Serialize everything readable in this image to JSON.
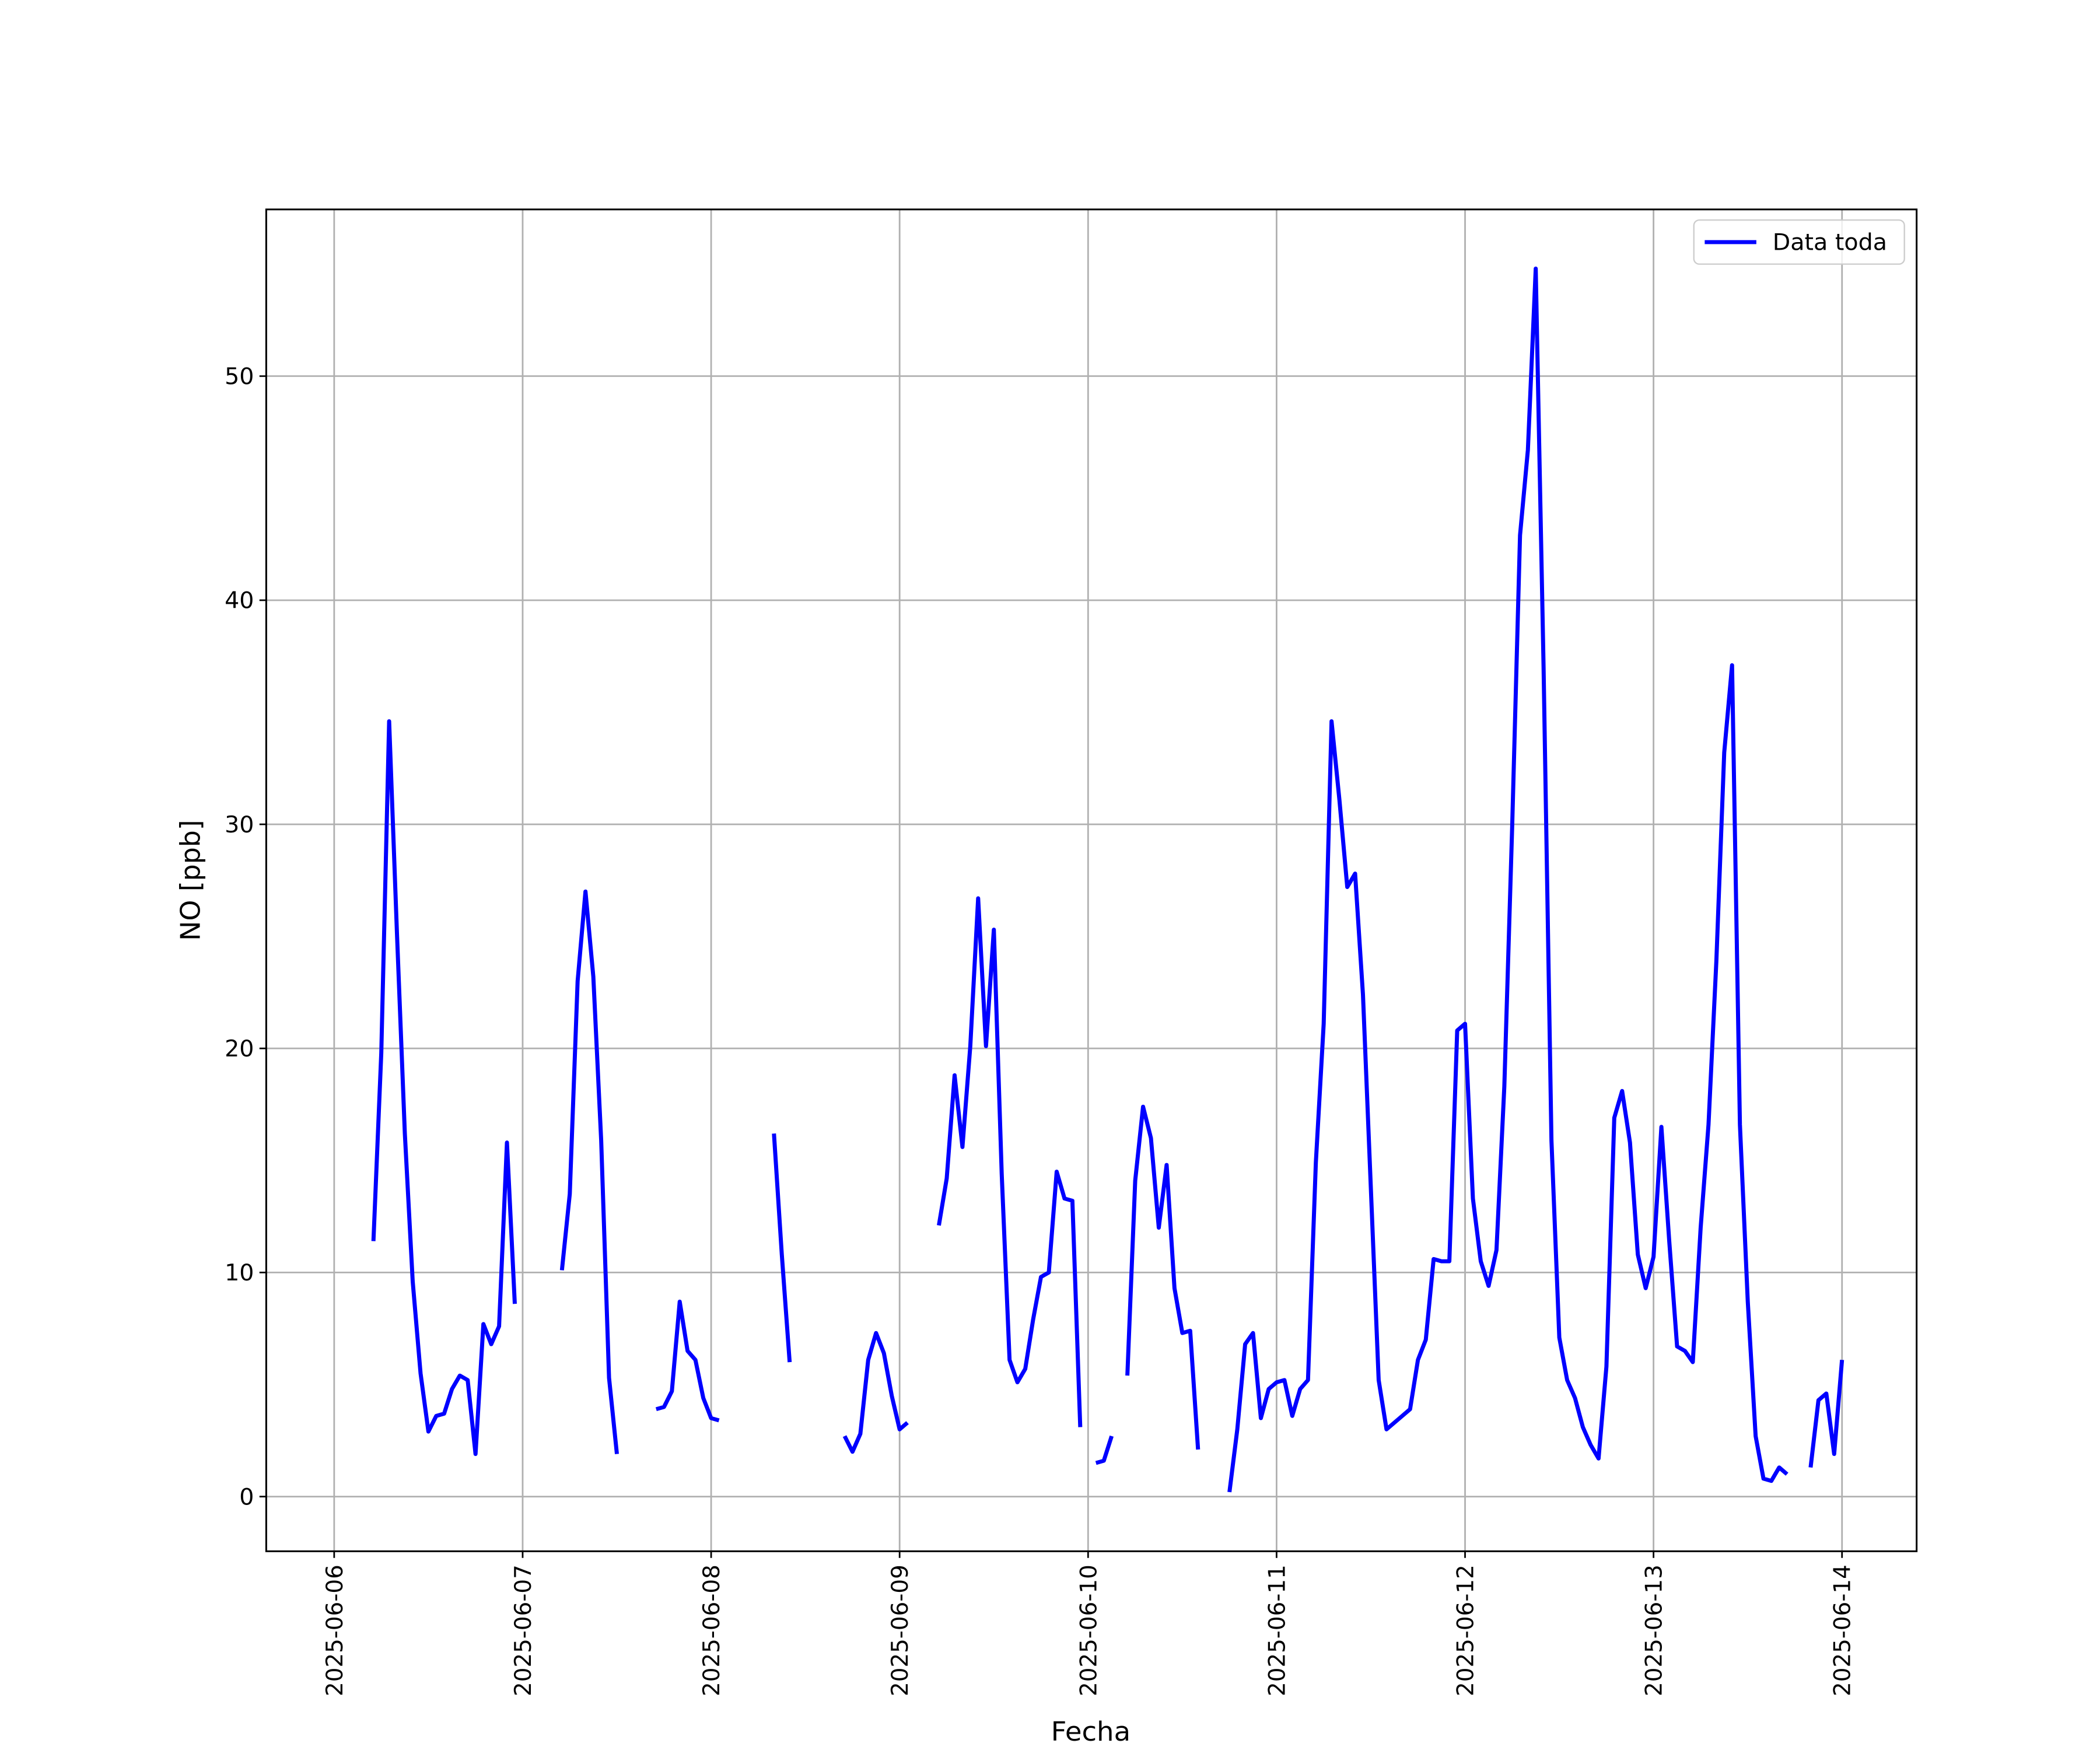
{
  "chart_data": {
    "type": "line",
    "xlabel": "Fecha",
    "ylabel": "NO [ppb]",
    "x": [
      "2025-06-06 05:00",
      "2025-06-06 06:00",
      "2025-06-06 07:00",
      "2025-06-06 08:00",
      "2025-06-06 09:00",
      "2025-06-06 10:00",
      "2025-06-06 11:00",
      "2025-06-06 12:00",
      "2025-06-06 13:00",
      "2025-06-06 14:00",
      "2025-06-06 15:00",
      "2025-06-06 16:00",
      "2025-06-06 17:00",
      "2025-06-06 18:00",
      "2025-06-06 19:00",
      "2025-06-06 20:00",
      "2025-06-06 21:00",
      "2025-06-06 22:00",
      "2025-06-06 23:00",
      "2025-06-07 00:00",
      "2025-06-07 01:00",
      "2025-06-07 02:00",
      "2025-06-07 03:00",
      "2025-06-07 04:00",
      "2025-06-07 05:00",
      "2025-06-07 06:00",
      "2025-06-07 07:00",
      "2025-06-07 08:00",
      "2025-06-07 09:00",
      "2025-06-07 10:00",
      "2025-06-07 11:00",
      "2025-06-07 12:00",
      "2025-06-07 13:00",
      "2025-06-07 14:00",
      "2025-06-07 15:00",
      "2025-06-07 16:00",
      "2025-06-07 17:00",
      "2025-06-07 18:00",
      "2025-06-07 19:00",
      "2025-06-07 20:00",
      "2025-06-07 21:00",
      "2025-06-07 22:00",
      "2025-06-07 23:00",
      "2025-06-08 00:00",
      "2025-06-08 01:00",
      "2025-06-08 02:00",
      "2025-06-08 03:00",
      "2025-06-08 04:00",
      "2025-06-08 05:00",
      "2025-06-08 06:00",
      "2025-06-08 07:00",
      "2025-06-08 08:00",
      "2025-06-08 09:00",
      "2025-06-08 10:00",
      "2025-06-08 11:00",
      "2025-06-08 12:00",
      "2025-06-08 13:00",
      "2025-06-08 14:00",
      "2025-06-08 15:00",
      "2025-06-08 16:00",
      "2025-06-08 17:00",
      "2025-06-08 18:00",
      "2025-06-08 19:00",
      "2025-06-08 20:00",
      "2025-06-08 21:00",
      "2025-06-08 22:00",
      "2025-06-08 23:00",
      "2025-06-09 00:00",
      "2025-06-09 01:00",
      "2025-06-09 02:00",
      "2025-06-09 03:00",
      "2025-06-09 04:00",
      "2025-06-09 05:00",
      "2025-06-09 06:00",
      "2025-06-09 07:00",
      "2025-06-09 08:00",
      "2025-06-09 09:00",
      "2025-06-09 10:00",
      "2025-06-09 11:00",
      "2025-06-09 12:00",
      "2025-06-09 13:00",
      "2025-06-09 14:00",
      "2025-06-09 15:00",
      "2025-06-09 16:00",
      "2025-06-09 17:00",
      "2025-06-09 18:00",
      "2025-06-09 19:00",
      "2025-06-09 20:00",
      "2025-06-09 21:00",
      "2025-06-09 22:00",
      "2025-06-09 23:00",
      "2025-06-10 00:00",
      "2025-06-10 01:00",
      "2025-06-10 02:00",
      "2025-06-10 03:00",
      "2025-06-10 04:00",
      "2025-06-10 05:00",
      "2025-06-10 06:00",
      "2025-06-10 07:00",
      "2025-06-10 08:00",
      "2025-06-10 09:00",
      "2025-06-10 10:00",
      "2025-06-10 11:00",
      "2025-06-10 12:00",
      "2025-06-10 13:00",
      "2025-06-10 14:00",
      "2025-06-10 15:00",
      "2025-06-10 16:00",
      "2025-06-10 17:00",
      "2025-06-10 18:00",
      "2025-06-10 19:00",
      "2025-06-10 20:00",
      "2025-06-10 21:00",
      "2025-06-10 22:00",
      "2025-06-10 23:00",
      "2025-06-11 00:00",
      "2025-06-11 01:00",
      "2025-06-11 02:00",
      "2025-06-11 03:00",
      "2025-06-11 04:00",
      "2025-06-11 05:00",
      "2025-06-11 06:00",
      "2025-06-11 07:00",
      "2025-06-11 08:00",
      "2025-06-11 09:00",
      "2025-06-11 10:00",
      "2025-06-11 11:00",
      "2025-06-11 12:00",
      "2025-06-11 13:00",
      "2025-06-11 14:00",
      "2025-06-11 15:00",
      "2025-06-11 16:00",
      "2025-06-11 17:00",
      "2025-06-11 18:00",
      "2025-06-11 19:00",
      "2025-06-11 20:00",
      "2025-06-11 21:00",
      "2025-06-11 22:00",
      "2025-06-11 23:00",
      "2025-06-12 00:00",
      "2025-06-12 01:00",
      "2025-06-12 02:00",
      "2025-06-12 03:00",
      "2025-06-12 04:00",
      "2025-06-12 05:00",
      "2025-06-12 06:00",
      "2025-06-12 07:00",
      "2025-06-12 08:00",
      "2025-06-12 09:00",
      "2025-06-12 10:00",
      "2025-06-12 11:00",
      "2025-06-12 12:00",
      "2025-06-12 13:00",
      "2025-06-12 14:00",
      "2025-06-12 15:00",
      "2025-06-12 16:00",
      "2025-06-12 17:00",
      "2025-06-12 18:00",
      "2025-06-12 19:00",
      "2025-06-12 20:00",
      "2025-06-12 21:00",
      "2025-06-12 22:00",
      "2025-06-12 23:00",
      "2025-06-13 00:00",
      "2025-06-13 01:00",
      "2025-06-13 02:00",
      "2025-06-13 03:00",
      "2025-06-13 04:00",
      "2025-06-13 05:00",
      "2025-06-13 06:00",
      "2025-06-13 07:00",
      "2025-06-13 08:00",
      "2025-06-13 09:00",
      "2025-06-13 10:00",
      "2025-06-13 11:00",
      "2025-06-13 12:00",
      "2025-06-13 13:00",
      "2025-06-13 14:00",
      "2025-06-13 15:00",
      "2025-06-13 16:00",
      "2025-06-13 17:00",
      "2025-06-13 18:00",
      "2025-06-13 19:00",
      "2025-06-13 20:00",
      "2025-06-13 21:00",
      "2025-06-13 22:00",
      "2025-06-13 23:00",
      "2025-06-14 00:00"
    ],
    "series": [
      {
        "name": "Data toda",
        "color": "#0000ff",
        "values": [
          11.4,
          19.8,
          34.6,
          25.1,
          16.2,
          9.6,
          5.5,
          2.9,
          3.6,
          3.7,
          4.8,
          5.4,
          5.2,
          1.9,
          7.7,
          6.8,
          7.6,
          15.8,
          8.6,
          null,
          null,
          null,
          null,
          null,
          10.1,
          13.5,
          23.0,
          27.0,
          23.2,
          15.9,
          5.3,
          1.9,
          null,
          null,
          null,
          null,
          3.9,
          4.0,
          4.7,
          8.7,
          6.5,
          6.1,
          4.4,
          3.5,
          3.4,
          null,
          null,
          null,
          null,
          null,
          null,
          16.2,
          10.8,
          6.0,
          null,
          null,
          null,
          null,
          null,
          null,
          2.7,
          2.0,
          2.8,
          6.1,
          7.3,
          6.4,
          4.5,
          3.0,
          3.3,
          null,
          null,
          null,
          12.1,
          14.2,
          18.8,
          15.6,
          20.1,
          26.7,
          20.1,
          25.3,
          14.4,
          6.1,
          5.1,
          5.7,
          7.9,
          9.8,
          10.0,
          14.5,
          13.3,
          13.2,
          3.1,
          null,
          1.5,
          1.6,
          2.7,
          null,
          5.4,
          14.1,
          17.4,
          16.0,
          12.0,
          14.8,
          9.3,
          7.3,
          7.4,
          2.1,
          null,
          null,
          null,
          0.2,
          3.0,
          6.8,
          7.3,
          3.5,
          4.8,
          5.1,
          5.2,
          3.6,
          4.8,
          5.2,
          14.9,
          21.1,
          34.6,
          31.1,
          27.2,
          27.8,
          22.4,
          13.8,
          5.2,
          3.0,
          3.3,
          3.6,
          3.9,
          6.1,
          7.0,
          10.6,
          10.5,
          10.5,
          20.8,
          21.1,
          13.3,
          10.5,
          9.4,
          11.0,
          18.3,
          29.9,
          42.9,
          46.7,
          54.8,
          37.0,
          15.9,
          7.1,
          5.2,
          4.4,
          3.1,
          2.3,
          1.7,
          5.8,
          16.9,
          18.1,
          15.8,
          10.8,
          9.3,
          10.7,
          16.5,
          11.4,
          6.7,
          6.5,
          6.0,
          12.0,
          16.6,
          23.9,
          33.2,
          37.1,
          16.6,
          8.7,
          2.7,
          0.8,
          0.7,
          1.3,
          1.0,
          null,
          null,
          1.3,
          4.3,
          4.6,
          1.9,
          6.1
        ]
      }
    ],
    "xlim": [
      "2025-06-05 15:21",
      "2025-06-14 09:30"
    ],
    "xticks": [
      "2025-06-06",
      "2025-06-07",
      "2025-06-08",
      "2025-06-09",
      "2025-06-10",
      "2025-06-11",
      "2025-06-12",
      "2025-06-13",
      "2025-06-14"
    ],
    "ylim": [
      -2.44,
      57.44
    ],
    "yticks": [
      0,
      10,
      20,
      30,
      40,
      50
    ],
    "grid": true,
    "legend": "upper right"
  }
}
